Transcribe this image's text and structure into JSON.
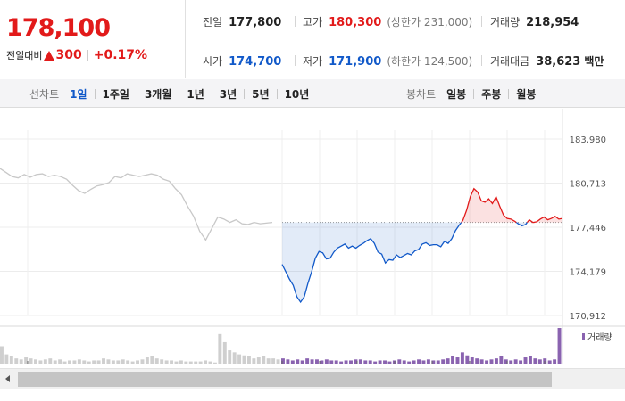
{
  "quote": {
    "price": "178,100",
    "change_label": "전일대비",
    "change_value": "300",
    "change_percent": "+0.17%",
    "stats": {
      "prev_close": {
        "label": "전일",
        "value": "177,800"
      },
      "high": {
        "label": "고가",
        "value": "180,300",
        "limit_label": "(상한가 231,000)"
      },
      "volume": {
        "label": "거래량",
        "value": "218,954"
      },
      "open": {
        "label": "시가",
        "value": "174,700"
      },
      "low": {
        "label": "저가",
        "value": "171,900",
        "limit_label": "(하한가 124,500)"
      },
      "trade_value": {
        "label": "거래대금",
        "value": "38,623",
        "unit": "백만"
      }
    }
  },
  "toolbar": {
    "line_chart": {
      "title": "선차트",
      "items": [
        "1일",
        "1주일",
        "3개월",
        "1년",
        "3년",
        "5년",
        "10년"
      ],
      "active": "1일"
    },
    "candle_chart": {
      "title": "봉차트",
      "items": [
        "일봉",
        "주봉",
        "월봉"
      ]
    }
  },
  "colors": {
    "up": "#e21a1a",
    "down": "#1159c9",
    "prev_day_line": "#c8c8c8",
    "volume": "#8a63b0"
  },
  "chart_data": {
    "type": "line",
    "ylim": [
      170912,
      183980
    ],
    "y_ticks": [
      "183,980",
      "180,713",
      "177,446",
      "174,179",
      "170,912"
    ],
    "baseline": 177800,
    "volume_legend": "거래량",
    "series": [
      {
        "values": [
          181800,
          181500,
          181200,
          181100,
          181350,
          181150,
          181350,
          181400,
          181200,
          181300,
          181200,
          181000,
          180550,
          180150,
          179950,
          180250,
          180500,
          180600,
          180750,
          181200,
          181100,
          181400,
          181300,
          181200,
          181300,
          181400,
          181300,
          181000,
          180850,
          180300,
          179850,
          179000,
          178250,
          177150,
          176500,
          177350,
          178200,
          178050,
          177800,
          178000,
          177700,
          177650,
          177800,
          177700,
          177750,
          177800
        ]
      },
      {
        "values": [
          174700,
          174150,
          173600,
          173150,
          172300,
          171900,
          172300,
          173300,
          174150,
          175150,
          175650,
          175550,
          175100,
          175150,
          175600,
          175900,
          176050,
          176200,
          175900,
          176050,
          175900,
          176100,
          176250,
          176450,
          176600,
          176250,
          175600,
          175450,
          174800,
          175050,
          175000,
          175400,
          175200,
          175350,
          175500,
          175400,
          175700,
          175800,
          176200,
          176300,
          176100,
          176150,
          176150,
          176000,
          176400,
          176250,
          176600,
          177200,
          177600,
          177950,
          178700,
          179700,
          180300,
          180050,
          179400,
          179300,
          179550,
          179200,
          179700,
          179000,
          178350,
          178100,
          178050,
          177900,
          177700,
          177550,
          177650,
          178000,
          177800,
          177850,
          178050,
          178200,
          178000,
          178100,
          178250,
          178050,
          178100
        ]
      }
    ],
    "volume": [
      18,
      10,
      8,
      6,
      5,
      7,
      6,
      5,
      4,
      5,
      6,
      4,
      5,
      3,
      4,
      4,
      5,
      4,
      3,
      4,
      4,
      6,
      5,
      4,
      4,
      5,
      4,
      3,
      4,
      5,
      7,
      8,
      6,
      5,
      4,
      4,
      3,
      4,
      3,
      3,
      3,
      3,
      4,
      3,
      2,
      30,
      22,
      14,
      12,
      10,
      9,
      8,
      6,
      7,
      8,
      6,
      6,
      5,
      6,
      5,
      4,
      5,
      4,
      6,
      5,
      5,
      4,
      5,
      4,
      4,
      3,
      4,
      4,
      5,
      5,
      4,
      4,
      3,
      4,
      4,
      3,
      4,
      5,
      4,
      3,
      4,
      5,
      4,
      5,
      4,
      4,
      5,
      6,
      8,
      7,
      12,
      9,
      7,
      6,
      5,
      4,
      5,
      6,
      8,
      5,
      4,
      5,
      4,
      7,
      8,
      6,
      5,
      6,
      4,
      5,
      36
    ]
  }
}
